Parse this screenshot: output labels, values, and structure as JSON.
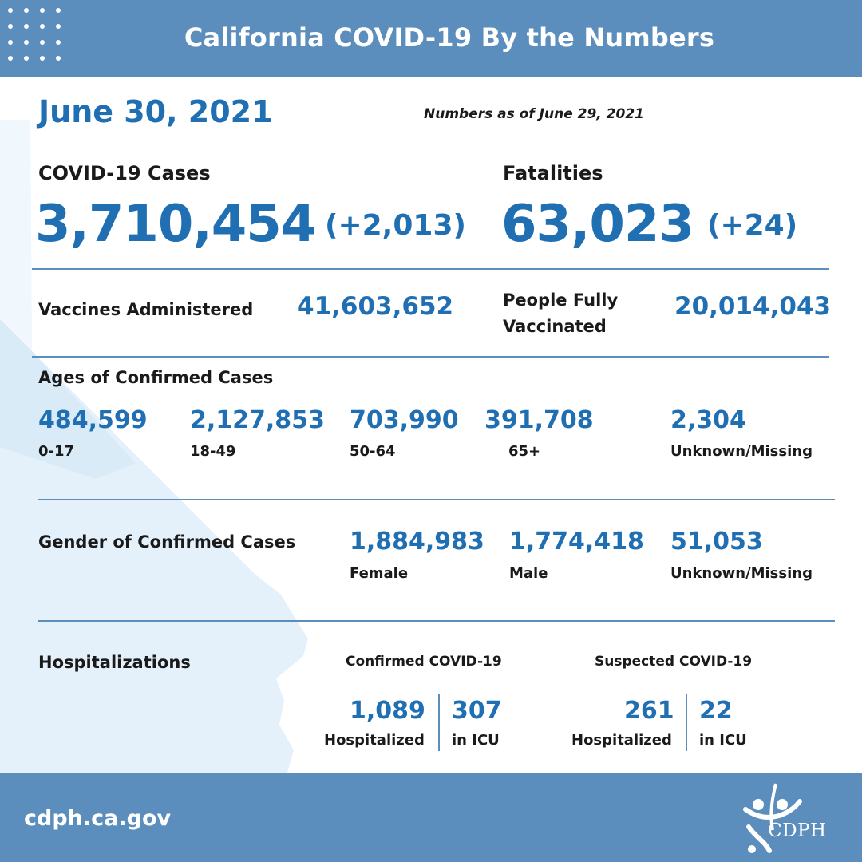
{
  "header": {
    "title": "California COVID-19 By the Numbers"
  },
  "date": "June 30, 2021",
  "numbers_as_of": "Numbers as of June 29, 2021",
  "cases": {
    "label": "COVID-19 Cases",
    "value": "3,710,454",
    "delta": "(+2,013)"
  },
  "fatalities": {
    "label": "Fatalities",
    "value": "63,023",
    "delta": "(+24)"
  },
  "vaccines": {
    "administered_label": "Vaccines Administered",
    "administered_value": "41,603,652",
    "fully_label_line1": "People Fully",
    "fully_label_line2": "Vaccinated",
    "fully_value": "20,014,043"
  },
  "ages": {
    "title": "Ages of Confirmed Cases",
    "groups": [
      {
        "value": "484,599",
        "label": "0-17"
      },
      {
        "value": "2,127,853",
        "label": "18-49"
      },
      {
        "value": "703,990",
        "label": "50-64"
      },
      {
        "value": "391,708",
        "label": "65+"
      },
      {
        "value": "2,304",
        "label": "Unknown/Missing"
      }
    ]
  },
  "gender": {
    "title": "Gender of Confirmed Cases",
    "groups": [
      {
        "value": "1,884,983",
        "label": "Female"
      },
      {
        "value": "1,774,418",
        "label": "Male"
      },
      {
        "value": "51,053",
        "label": "Unknown/Missing"
      }
    ]
  },
  "hospitalizations": {
    "title": "Hospitalizations",
    "confirmed": {
      "heading": "Confirmed COVID-19",
      "hospitalized_value": "1,089",
      "hospitalized_label": "Hospitalized",
      "icu_value": "307",
      "icu_label": "in ICU"
    },
    "suspected": {
      "heading": "Suspected COVID-19",
      "hospitalized_value": "261",
      "hospitalized_label": "Hospitalized",
      "icu_value": "22",
      "icu_label": "in ICU"
    }
  },
  "footer": {
    "url": "cdph.ca.gov",
    "logo_text": "CDPH"
  },
  "colors": {
    "banner": "#5b8dbd",
    "accent_blue": "#1f6fb2",
    "map_tint": "#e4f1fb"
  }
}
